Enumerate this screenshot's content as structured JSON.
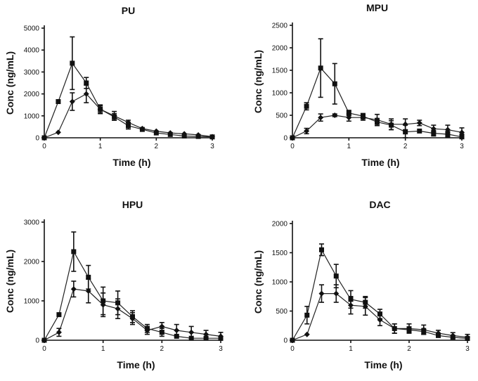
{
  "chart_data": [
    {
      "type": "line",
      "title": "PU",
      "xlabel": "Time (h)",
      "ylabel": "Conc (ng/mL)",
      "xlim": [
        0,
        3
      ],
      "ylim": [
        0,
        5000
      ],
      "xticks": [
        0,
        1,
        2,
        3
      ],
      "yticks": [
        0,
        1000,
        2000,
        3000,
        4000,
        5000
      ],
      "series": [
        {
          "name": "square",
          "marker": "square",
          "x": [
            0,
            0.25,
            0.5,
            0.75,
            1,
            1.25,
            1.5,
            1.75,
            2,
            2.25,
            2.5,
            2.75,
            3
          ],
          "y": [
            0,
            1650,
            3400,
            2500,
            1300,
            950,
            550,
            380,
            220,
            150,
            80,
            60,
            40
          ],
          "err": [
            0,
            0,
            1200,
            250,
            150,
            150,
            150,
            0,
            0,
            0,
            0,
            0,
            0
          ]
        },
        {
          "name": "diamond",
          "marker": "diamond",
          "x": [
            0,
            0.25,
            0.5,
            0.75,
            1,
            1.25,
            1.5,
            1.75,
            2,
            2.25,
            2.5,
            2.75,
            3
          ],
          "y": [
            0,
            250,
            1650,
            2000,
            1300,
            1000,
            700,
            420,
            300,
            220,
            180,
            130,
            50
          ],
          "err": [
            0,
            0,
            400,
            400,
            200,
            200,
            100,
            0,
            0,
            0,
            0,
            0,
            0
          ]
        }
      ]
    },
    {
      "type": "line",
      "title": "MPU",
      "xlabel": "Time (h)",
      "ylabel": "Conc (ng/mL)",
      "xlim": [
        0,
        3
      ],
      "ylim": [
        0,
        2500
      ],
      "xticks": [
        0,
        1,
        2,
        3
      ],
      "yticks": [
        0,
        500,
        1000,
        1500,
        2000,
        2500
      ],
      "series": [
        {
          "name": "square",
          "marker": "square",
          "x": [
            0,
            0.25,
            0.5,
            0.75,
            1,
            1.25,
            1.5,
            1.75,
            2,
            2.25,
            2.5,
            2.75,
            3
          ],
          "y": [
            0,
            700,
            1550,
            1200,
            550,
            480,
            350,
            280,
            130,
            150,
            100,
            80,
            20
          ],
          "err": [
            0,
            80,
            650,
            450,
            60,
            60,
            80,
            100,
            150,
            0,
            60,
            60,
            60
          ]
        },
        {
          "name": "diamond",
          "marker": "diamond",
          "x": [
            0,
            0.25,
            0.5,
            0.75,
            1,
            1.25,
            1.5,
            1.75,
            2,
            2.25,
            2.5,
            2.75,
            3
          ],
          "y": [
            0,
            150,
            450,
            500,
            450,
            450,
            400,
            300,
            300,
            330,
            200,
            180,
            120
          ],
          "err": [
            0,
            60,
            80,
            30,
            80,
            60,
            120,
            120,
            120,
            60,
            80,
            100,
            100
          ]
        }
      ]
    },
    {
      "type": "line",
      "title": "HPU",
      "xlabel": "Time (h)",
      "ylabel": "Conc (ng/mL)",
      "xlim": [
        0,
        3
      ],
      "ylim": [
        0,
        3000
      ],
      "xticks": [
        0,
        1,
        2,
        3
      ],
      "yticks": [
        0,
        1000,
        2000,
        3000
      ],
      "series": [
        {
          "name": "square",
          "marker": "square",
          "x": [
            0,
            0.25,
            0.5,
            0.75,
            1,
            1.25,
            1.5,
            1.75,
            2,
            2.25,
            2.5,
            2.75,
            3
          ],
          "y": [
            0,
            650,
            2250,
            1600,
            1000,
            950,
            600,
            300,
            200,
            100,
            50,
            50,
            50
          ],
          "err": [
            0,
            0,
            500,
            300,
            350,
            300,
            150,
            100,
            100,
            0,
            0,
            0,
            0
          ]
        },
        {
          "name": "diamond",
          "marker": "diamond",
          "x": [
            0,
            0.25,
            0.5,
            0.75,
            1,
            1.25,
            1.5,
            1.75,
            2,
            2.25,
            2.5,
            2.75,
            3
          ],
          "y": [
            0,
            200,
            1300,
            1250,
            900,
            800,
            550,
            250,
            350,
            250,
            200,
            150,
            100
          ],
          "err": [
            0,
            100,
            200,
            300,
            300,
            250,
            150,
            100,
            100,
            150,
            150,
            100,
            100
          ]
        }
      ]
    },
    {
      "type": "line",
      "title": "DAC",
      "xlabel": "Time (h)",
      "ylabel": "Conc (ng/mL)",
      "xlim": [
        0,
        3
      ],
      "ylim": [
        0,
        2000
      ],
      "xticks": [
        0,
        1,
        2,
        3
      ],
      "yticks": [
        0,
        500,
        1000,
        1500,
        2000
      ],
      "series": [
        {
          "name": "square",
          "marker": "square",
          "x": [
            0,
            0.25,
            0.5,
            0.75,
            1,
            1.25,
            1.5,
            1.75,
            2,
            2.25,
            2.5,
            2.75,
            3
          ],
          "y": [
            0,
            430,
            1550,
            1100,
            700,
            650,
            450,
            200,
            180,
            150,
            80,
            50,
            30
          ],
          "err": [
            0,
            150,
            100,
            200,
            150,
            100,
            80,
            80,
            50,
            50,
            0,
            0,
            0
          ]
        },
        {
          "name": "diamond",
          "marker": "diamond",
          "x": [
            0,
            0.25,
            0.5,
            0.75,
            1,
            1.25,
            1.5,
            1.75,
            2,
            2.25,
            2.5,
            2.75,
            3
          ],
          "y": [
            0,
            100,
            800,
            800,
            600,
            580,
            350,
            200,
            200,
            180,
            120,
            80,
            50
          ],
          "err": [
            0,
            0,
            150,
            150,
            150,
            150,
            100,
            80,
            80,
            80,
            50,
            50,
            50
          ]
        }
      ]
    }
  ]
}
